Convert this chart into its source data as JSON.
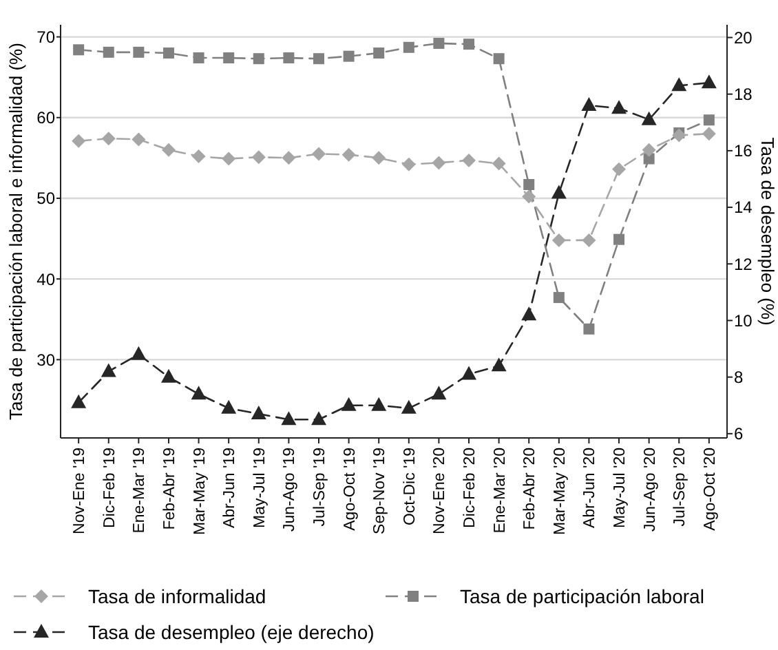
{
  "chart_data": {
    "type": "line",
    "ylabel": "Tasa de participación laboral e informalidad (%)",
    "y2label": "Tasa de desempleo (%)",
    "categories": [
      "Nov-Ene '19",
      "Dic-Feb '19",
      "Ene-Mar '19",
      "Feb-Abr '19",
      "Mar-May '19",
      "Abr-Jun '19",
      "May-Jul '19",
      "Jun-Ago '19",
      "Jul-Sep '19",
      "Ago-Oct '19",
      "Sep-Nov '19",
      "Oct-Dic '19",
      "Nov-Ene '20",
      "Dic-Feb '20",
      "Ene-Mar '20",
      "Feb-Abr '20",
      "Mar-May '20",
      "Abr-Jun '20",
      "May-Jul '20",
      "Jun-Ago '20",
      "Jul-Sep '20",
      "Ago-Oct '20"
    ],
    "series": [
      {
        "name": "Tasa de informalidad",
        "color": "#a6a6a6",
        "marker": "diamond",
        "values": [
          57.1,
          57.4,
          57.3,
          56.0,
          55.2,
          54.9,
          55.1,
          55.0,
          55.5,
          55.4,
          55.0,
          54.2,
          54.4,
          54.7,
          54.3,
          50.2,
          44.8,
          44.8,
          53.6,
          56.0,
          57.8,
          58.0
        ]
      },
      {
        "name": "Tasa de participación laboral",
        "color": "#808080",
        "marker": "square",
        "values": [
          68.4,
          68.1,
          68.1,
          68.0,
          67.4,
          67.4,
          67.3,
          67.4,
          67.3,
          67.6,
          68.0,
          68.7,
          69.2,
          69.1,
          67.3,
          51.7,
          37.7,
          33.8,
          44.9,
          54.9,
          58.1,
          59.7
        ]
      },
      {
        "name": "Tasa de desempleo (eje derecho)",
        "color": "#262626",
        "marker": "triangle",
        "axis": "y2",
        "values": [
          7.1,
          8.2,
          8.8,
          8.0,
          7.4,
          6.9,
          6.7,
          6.5,
          6.5,
          7.0,
          7.0,
          6.9,
          7.4,
          8.1,
          8.4,
          10.2,
          14.5,
          17.6,
          17.5,
          17.1,
          18.3,
          18.4
        ]
      }
    ],
    "ylim": [
      20.3,
      71.5
    ],
    "yticks": [
      30,
      40,
      50,
      60,
      70
    ],
    "y2lim": [
      5.85,
      20.45
    ],
    "y2ticks": [
      6,
      8,
      10,
      12,
      14,
      16,
      18,
      20
    ],
    "grid": "y",
    "legend": "bottom",
    "line_style": "dashed"
  }
}
